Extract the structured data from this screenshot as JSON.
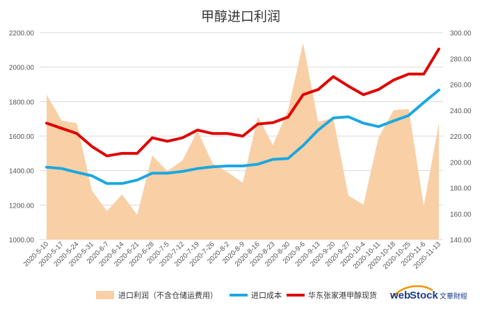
{
  "chart_data": {
    "type": "line",
    "title": "甲醇进口利润",
    "x": [
      "2020-5-10",
      "2020-5-17",
      "2020-5-24",
      "2020-5-31",
      "2020-6-7",
      "2020-6-14",
      "2020-6-21",
      "2020-6-28",
      "2020-7-5",
      "2020-7-12",
      "2020-7-19",
      "2020-7-26",
      "2020-8-2",
      "2020-8-9",
      "2020-8-16",
      "2020-8-23",
      "2020-8-30",
      "2020-9-6",
      "2020-9-13",
      "2020-9-20",
      "2020-9-27",
      "2020-10-4",
      "2020-10-11",
      "2020-10-18",
      "2020-10-25",
      "2020-11-6",
      "2020-11-13"
    ],
    "y_left": {
      "ylim": [
        1000,
        2200
      ],
      "ticks": [
        "1000.00",
        "1200.00",
        "1400.00",
        "1600.00",
        "1800.00",
        "2000.00",
        "2200.00"
      ]
    },
    "y_right": {
      "ylim": [
        140,
        300
      ],
      "ticks": [
        "140.00",
        "160.00",
        "180.00",
        "200.00",
        "220.00",
        "240.00",
        "260.00",
        "280.00",
        "300.00"
      ]
    },
    "series": [
      {
        "name": "进口利润（不含仓储运费用）",
        "kind": "area",
        "axis": "right",
        "color": "#f9cfa6",
        "values": [
          252,
          232,
          230,
          178,
          162,
          175,
          159,
          205,
          193,
          201,
          224,
          199,
          192,
          184,
          235,
          213,
          240,
          292,
          231,
          234,
          174,
          167,
          219,
          240,
          241,
          166,
          230
        ]
      },
      {
        "name": "进口成本",
        "kind": "line",
        "axis": "left",
        "color": "#1aa8e0",
        "values": [
          1420,
          1412,
          1390,
          1370,
          1325,
          1325,
          1345,
          1385,
          1385,
          1395,
          1412,
          1422,
          1427,
          1427,
          1437,
          1465,
          1470,
          1545,
          1635,
          1705,
          1712,
          1675,
          1655,
          1688,
          1720,
          1795,
          1867
        ]
      },
      {
        "name": "华东张家港甲醇现货",
        "kind": "line",
        "axis": "left",
        "color": "#e00000",
        "values": [
          1675,
          1645,
          1615,
          1540,
          1485,
          1500,
          1500,
          1590,
          1570,
          1590,
          1635,
          1615,
          1615,
          1600,
          1670,
          1678,
          1710,
          1840,
          1870,
          1945,
          1890,
          1840,
          1870,
          1925,
          1960,
          1960,
          2105
        ]
      }
    ],
    "legend": {
      "position": "bottom"
    },
    "grid": true
  },
  "logo": {
    "text_web": "web",
    "text_stock": "Stock",
    "text_cn": "文華財經"
  }
}
